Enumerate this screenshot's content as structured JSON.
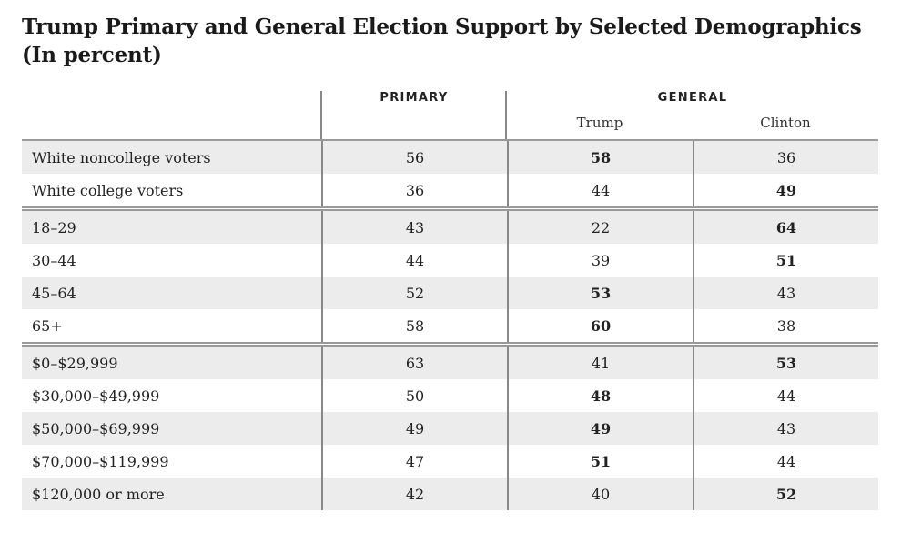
{
  "title": {
    "line1": "Trump Primary and General Election Support by Selected Demographics",
    "line2": "(In percent)"
  },
  "headers": {
    "primary": "PRIMARY",
    "general": "GENERAL",
    "trump": "Trump",
    "clinton": "Clinton"
  },
  "groups": [
    {
      "rows": [
        {
          "label": "White noncollege voters",
          "primary": "56",
          "trump": "58",
          "clinton": "36",
          "bold": "trump"
        },
        {
          "label": "White college voters",
          "primary": "36",
          "trump": "44",
          "clinton": "49",
          "bold": "clinton"
        }
      ]
    },
    {
      "rows": [
        {
          "label": "18–29",
          "primary": "43",
          "trump": "22",
          "clinton": "64",
          "bold": "clinton"
        },
        {
          "label": "30–44",
          "primary": "44",
          "trump": "39",
          "clinton": "51",
          "bold": "clinton"
        },
        {
          "label": "45–64",
          "primary": "52",
          "trump": "53",
          "clinton": "43",
          "bold": "trump"
        },
        {
          "label": "65+",
          "primary": "58",
          "trump": "60",
          "clinton": "38",
          "bold": "trump"
        }
      ]
    },
    {
      "rows": [
        {
          "label": "$0–$29,999",
          "primary": "63",
          "trump": "41",
          "clinton": "53",
          "bold": "clinton"
        },
        {
          "label": "$30,000–$49,999",
          "primary": "50",
          "trump": "48",
          "clinton": "44",
          "bold": "trump"
        },
        {
          "label": "$50,000–$69,999",
          "primary": "49",
          "trump": "49",
          "clinton": "43",
          "bold": "trump"
        },
        {
          "label": "$70,000–$119,999",
          "primary": "47",
          "trump": "51",
          "clinton": "44",
          "bold": "trump"
        },
        {
          "label": "$120,000 or more",
          "primary": "42",
          "trump": "40",
          "clinton": "52",
          "bold": "clinton"
        }
      ]
    }
  ]
}
